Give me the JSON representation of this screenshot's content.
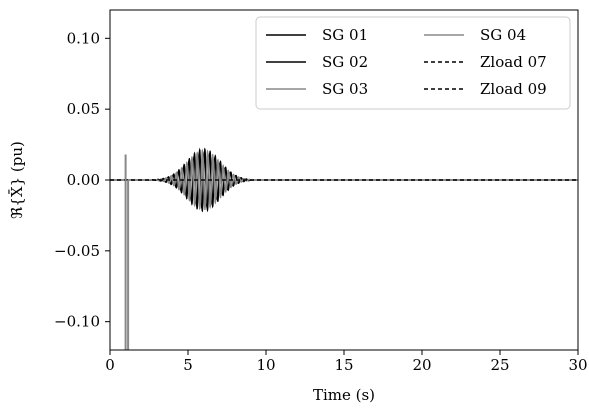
{
  "chart_data": {
    "type": "line",
    "xlabel": "Time (s)",
    "ylabel": "ℜ{X̄} (pu)",
    "xlim": [
      0,
      30
    ],
    "ylim": [
      -0.12,
      0.12
    ],
    "xticks": [
      0,
      5,
      10,
      15,
      20,
      25,
      30
    ],
    "xtick_labels": [
      "0",
      "5",
      "10",
      "15",
      "20",
      "25",
      "30"
    ],
    "yticks": [
      0.1,
      0.05,
      0.0,
      -0.05,
      -0.1
    ],
    "ytick_labels": [
      "0.10",
      "0.05",
      "0.00",
      "−0.05",
      "−0.10"
    ],
    "grid": false,
    "legend_position": "top-right",
    "legend_columns": 2,
    "series": [
      {
        "name": "SG 01",
        "color": "#000000",
        "style": "solid"
      },
      {
        "name": "SG 02",
        "color": "#000000",
        "style": "solid"
      },
      {
        "name": "SG 03",
        "color": "#888888",
        "style": "solid"
      },
      {
        "name": "SG 04",
        "color": "#888888",
        "style": "solid"
      },
      {
        "name": "Zload 07",
        "color": "#000000",
        "style": "dashed"
      },
      {
        "name": "Zload 09",
        "color": "#000000",
        "style": "dashed"
      }
    ],
    "disturbance": {
      "time": 1.0,
      "peak": 0.018,
      "trough": -0.12
    },
    "oscillation": {
      "start": 2.5,
      "end": 9.0,
      "center": 6.0,
      "amplitude": 0.022,
      "frequency_hz": 3.0
    }
  }
}
